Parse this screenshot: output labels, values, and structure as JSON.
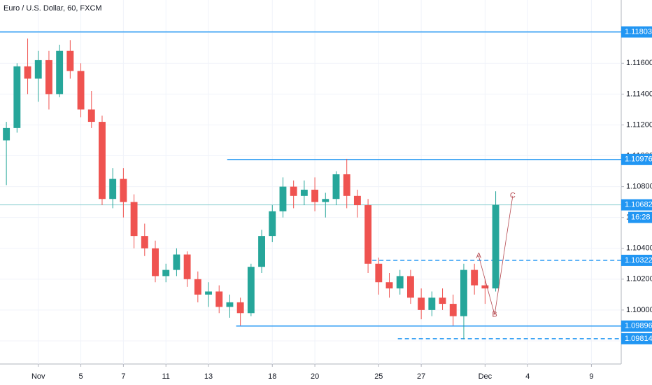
{
  "chart_data": {
    "type": "candlestick",
    "title": "Euro / U.S. Dollar, 60, FXCM",
    "countdown": "16:28",
    "up_color": "#26a69a",
    "down_color": "#ef5350",
    "grid": true,
    "xlim": [
      -1.8,
      27.4
    ],
    "ylim": [
      1.0965,
      1.1201
    ],
    "xticks": [
      {
        "value": 0,
        "label": "Nov"
      },
      {
        "value": 2,
        "label": "5"
      },
      {
        "value": 4,
        "label": "7"
      },
      {
        "value": 6,
        "label": "11"
      },
      {
        "value": 8,
        "label": "13"
      },
      {
        "value": 11,
        "label": "18"
      },
      {
        "value": 13,
        "label": "20"
      },
      {
        "value": 16,
        "label": "25"
      },
      {
        "value": 18,
        "label": "27"
      },
      {
        "value": 21,
        "label": "Dec"
      },
      {
        "value": 23,
        "label": "4"
      },
      {
        "value": 26,
        "label": "9"
      }
    ],
    "yticks": [
      {
        "value": 1.098,
        "label": "1.09800"
      },
      {
        "value": 1.1,
        "label": "1.10000"
      },
      {
        "value": 1.102,
        "label": "1.10200"
      },
      {
        "value": 1.104,
        "label": "1.10400"
      },
      {
        "value": 1.106,
        "label": "1.10600"
      },
      {
        "value": 1.108,
        "label": "1.10800"
      },
      {
        "value": 1.11,
        "label": "1.11000"
      },
      {
        "value": 1.112,
        "label": "1.11200"
      },
      {
        "value": 1.114,
        "label": "1.11400"
      },
      {
        "value": 1.116,
        "label": "1.11600"
      },
      {
        "value": 1.118,
        "label": "1.11800"
      }
    ],
    "x": [
      -1.5,
      -1,
      -0.5,
      0,
      0.5,
      1,
      1.5,
      2,
      2.5,
      3,
      3.5,
      4,
      4.5,
      5,
      5.5,
      6,
      6.5,
      7,
      7.5,
      8,
      8.5,
      9,
      9.5,
      10,
      10.5,
      11,
      11.5,
      12,
      12.5,
      13,
      13.5,
      14,
      14.5,
      15,
      15.5,
      16,
      16.5,
      17,
      17.5,
      18,
      18.5,
      19,
      19.5,
      20,
      20.5,
      21,
      21.5
    ],
    "open": [
      1.111,
      1.1118,
      1.1158,
      1.115,
      1.1162,
      1.114,
      1.1168,
      1.1155,
      1.113,
      1.1122,
      1.1072,
      1.1085,
      1.107,
      1.1048,
      1.104,
      1.1022,
      1.1026,
      1.1036,
      1.102,
      1.101,
      1.1012,
      1.1002,
      1.1005,
      1.0998,
      1.1028,
      1.1048,
      1.1064,
      1.108,
      1.1074,
      1.1078,
      1.107,
      1.1072,
      1.1088,
      1.1074,
      1.1068,
      1.103,
      1.1018,
      1.1014,
      1.1022,
      1.1008,
      1.1,
      1.1008,
      1.1004,
      1.0996,
      1.1026,
      1.1016,
      1.1014
    ],
    "high": [
      1.1122,
      1.116,
      1.1176,
      1.1168,
      1.1168,
      1.1172,
      1.1175,
      1.116,
      1.1142,
      1.1126,
      1.1092,
      1.1092,
      1.1075,
      1.1056,
      1.1045,
      1.103,
      1.104,
      1.1038,
      1.1025,
      1.1018,
      1.1016,
      1.101,
      1.1008,
      1.103,
      1.1052,
      1.1068,
      1.1086,
      1.1084,
      1.1084,
      1.1086,
      1.1076,
      1.109,
      1.1098,
      1.1078,
      1.1072,
      1.1034,
      1.1024,
      1.1026,
      1.1026,
      1.1014,
      1.1012,
      1.1014,
      1.101,
      1.103,
      1.103,
      1.102,
      1.1077
    ],
    "low": [
      1.1081,
      1.1115,
      1.114,
      1.1135,
      1.113,
      1.1138,
      1.115,
      1.1125,
      1.1118,
      1.1068,
      1.1066,
      1.106,
      1.104,
      1.1035,
      1.1018,
      1.1018,
      1.1022,
      1.1015,
      1.1005,
      1.1002,
      1.0998,
      1.0995,
      1.099,
      1.0996,
      1.1024,
      1.1044,
      1.106,
      1.1066,
      1.1068,
      1.1064,
      1.106,
      1.1068,
      1.1066,
      1.106,
      1.1024,
      1.101,
      1.1008,
      1.101,
      1.1004,
      1.0994,
      1.0996,
      1.1,
      1.099,
      1.0981,
      1.101,
      1.1004,
      1.1012
    ],
    "close": [
      1.1118,
      1.1158,
      1.115,
      1.1162,
      1.114,
      1.1168,
      1.1155,
      1.113,
      1.1122,
      1.1072,
      1.1085,
      1.107,
      1.1048,
      1.104,
      1.1022,
      1.1026,
      1.1036,
      1.102,
      1.101,
      1.1012,
      1.1002,
      1.1005,
      1.0998,
      1.1028,
      1.1048,
      1.1064,
      1.108,
      1.1074,
      1.1078,
      1.107,
      1.1072,
      1.1088,
      1.1074,
      1.1068,
      1.103,
      1.1018,
      1.1014,
      1.1022,
      1.1008,
      1.1,
      1.1008,
      1.1004,
      1.0996,
      1.1026,
      1.1016,
      1.1014,
      1.10682
    ],
    "levels": [
      {
        "value": 1.11803,
        "style": "solid",
        "color": "#2196f3"
      },
      {
        "value": 1.10976,
        "x_start": 8.88,
        "style": "solid",
        "color": "#2196f3"
      },
      {
        "value": 1.10322,
        "x_start": 15.7,
        "style": "dashed",
        "color": "#2196f3"
      },
      {
        "value": 1.09896,
        "x_start": 9.3,
        "style": "solid",
        "color": "#2196f3"
      },
      {
        "value": 1.09814,
        "x_start": 16.9,
        "style": "dashed",
        "color": "#2196f3"
      }
    ],
    "last_price": {
      "value": 1.10682,
      "color": "#8fd0d2"
    },
    "annotations": [
      {
        "text": "A",
        "x": 20.7,
        "y": 1.1035
      },
      {
        "text": "B",
        "x": 21.45,
        "y": 1.0997
      },
      {
        "text": "C",
        "x": 22.3,
        "y": 1.1074
      }
    ],
    "annotation_color": "#b5484f"
  }
}
